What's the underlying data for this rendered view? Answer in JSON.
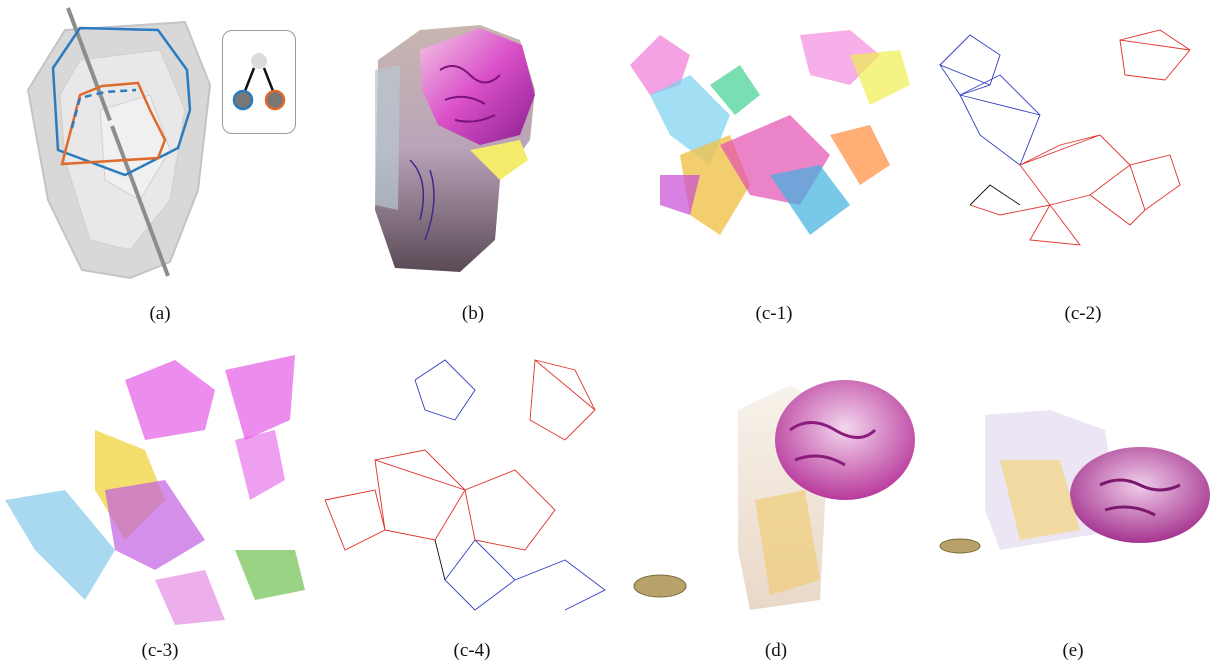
{
  "captions": {
    "a": "(a)",
    "b": "(b)",
    "c1": "(c-1)",
    "c2": "(c-2)",
    "c3": "(c-3)",
    "c4": "(c-4)",
    "d": "(d)",
    "e": "(e)"
  },
  "colors": {
    "blue": "#2b7bbf",
    "orange": "#e06a2c",
    "magenta": "#d020c8",
    "red_line": "#e0302a",
    "blue_line": "#3040c0",
    "gray": "#c9c9c9"
  },
  "icons": {
    "tree_diagram": "hierarchy-tree-icon",
    "coin": "euro-coin-icon"
  }
}
